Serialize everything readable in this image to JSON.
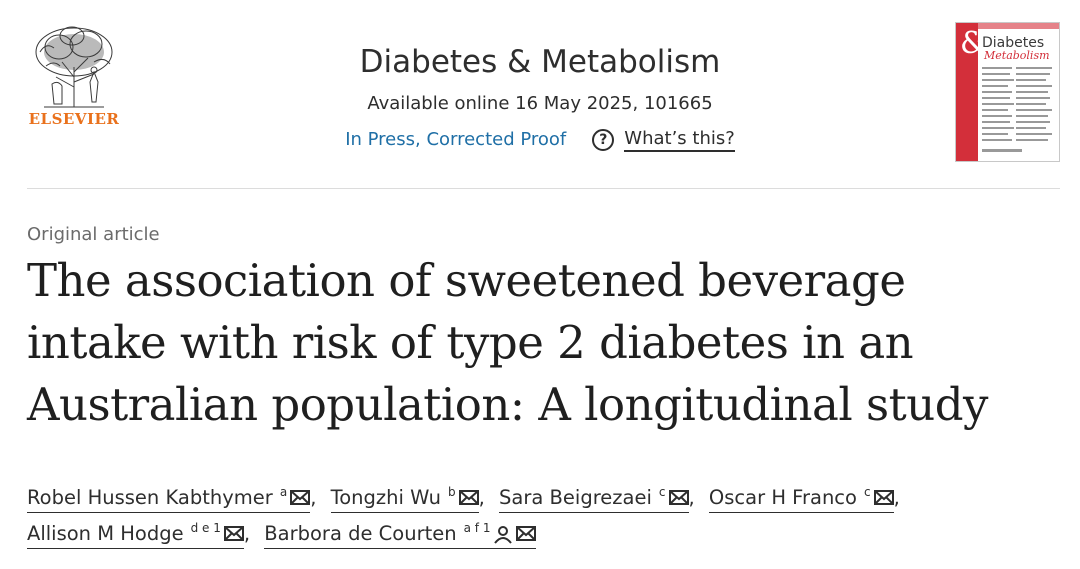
{
  "publisher": {
    "name": "ELSEVIER",
    "logo_icon": "elsevier-tree-logo"
  },
  "journal": {
    "title": "Diabetes & Metabolism",
    "available": "Available online 16 May 2025, 101665",
    "status_link": "In Press, Corrected Proof",
    "help_label": "What’s this?",
    "help_icon": "question-circle-icon",
    "cover": {
      "amp": "&",
      "line1": "Diabetes",
      "line2": "Metabolism",
      "accent_color": "#d32f3a"
    }
  },
  "article": {
    "type": "Original article",
    "title_lines": [
      "The association of sweetened beverage",
      "intake with risk of type 2 diabetes in an",
      "Australian population: A longitudinal study"
    ]
  },
  "authors": [
    {
      "name": "Robel Hussen Kabthymer",
      "sup": "a",
      "icons": [
        "mail-icon"
      ],
      "sep": ","
    },
    {
      "name": "Tongzhi Wu",
      "sup": "b",
      "icons": [
        "mail-icon"
      ],
      "sep": ","
    },
    {
      "name": "Sara Beigrezaei",
      "sup": "c",
      "icons": [
        "mail-icon"
      ],
      "sep": ","
    },
    {
      "name": "Oscar H Franco",
      "sup": "c",
      "icons": [
        "mail-icon"
      ],
      "sep": ","
    },
    {
      "name": "Allison M Hodge",
      "sup": "d e 1",
      "icons": [
        "mail-icon"
      ],
      "sep": ","
    },
    {
      "name": "Barbora de Courten",
      "sup": "a f 1",
      "icons": [
        "person-icon",
        "mail-icon"
      ],
      "sep": ""
    }
  ],
  "colors": {
    "link_blue": "#1f6fa6",
    "elsevier_orange": "#e9711c",
    "text_dark": "#1f1f1f",
    "muted": "#6b6b6b"
  }
}
